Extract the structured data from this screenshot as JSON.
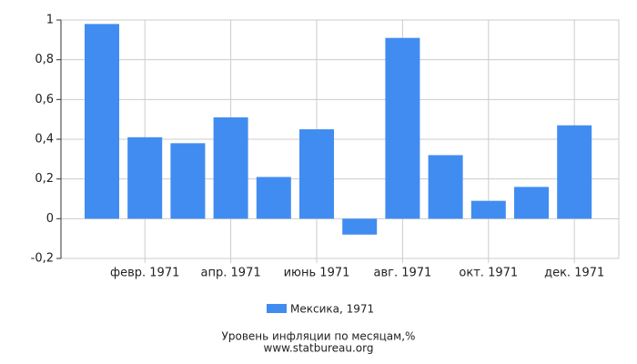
{
  "chart_data": {
    "type": "bar",
    "title": "Уровень инфляции по месяцам,%",
    "source": "www.statbureau.org",
    "categories": [
      null,
      "февр. 1971",
      null,
      "апр. 1971",
      null,
      "июнь 1971",
      null,
      "авг. 1971",
      null,
      "окт. 1971",
      null,
      "дек. 1971"
    ],
    "series": [
      {
        "name": "Мексика, 1971",
        "color": "#418cf0",
        "values": [
          0.98,
          0.41,
          0.38,
          0.51,
          0.21,
          0.45,
          -0.08,
          0.91,
          0.32,
          0.09,
          0.16,
          0.47
        ]
      }
    ],
    "ylim": [
      -0.2,
      1
    ],
    "yticks": [
      {
        "value": -0.2,
        "label": "-0,2"
      },
      0,
      {
        "value": 0.2,
        "label": "0,2"
      },
      {
        "value": 0.4,
        "label": "0,4"
      },
      {
        "value": 0.6,
        "label": "0,6"
      },
      {
        "value": 0.8,
        "label": "0,8"
      },
      1
    ],
    "grid": true
  }
}
